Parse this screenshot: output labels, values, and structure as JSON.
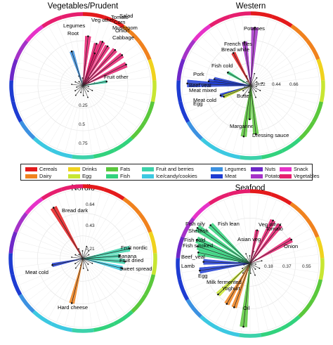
{
  "colors": {
    "Cereals": "#e41a1c",
    "Dairy": "#f0821e",
    "Drinks": "#f0d21e",
    "Egg": "#c8e632",
    "Fats": "#5ac83c",
    "Fish": "#32d27d",
    "Fruit and berries": "#3cd2aa",
    "Ice/candy/cookies": "#3cc8e1",
    "Legumes": "#3c91e1",
    "Meat": "#1e3cd2",
    "Nuts": "#6e28c8",
    "Potatoes": "#a532c8",
    "Snack": "#e632c8",
    "Vegetables": "#e61e6e"
  },
  "legend": {
    "items": [
      "Cereals",
      "Dairy",
      "Drinks",
      "Egg",
      "Fats",
      "Fish",
      "Fruit and berries",
      "Ice/candy/cookies",
      "Legumes",
      "Meat",
      "Nuts",
      "Potatoes",
      "Snack",
      "Vegetables"
    ]
  },
  "chart_data": [
    {
      "type": "radar",
      "title": "Vegetables/Prudent",
      "ring_labels": [
        "0.25",
        "0.5",
        "0.75"
      ],
      "ring_max": 0.85,
      "spokes": [
        {
          "label": "Legumes",
          "group": "Legumes",
          "value": 0.45
        },
        {
          "label": "Veg other",
          "group": "Vegetables",
          "value": 0.62
        },
        {
          "label": "Tomato",
          "group": "Vegetables",
          "value": 0.55
        },
        {
          "label": "Salad",
          "group": "Vegetables",
          "value": 0.6
        },
        {
          "label": "Corn",
          "group": "Vegetables",
          "value": 0.58
        },
        {
          "label": "Mushroom",
          "group": "Vegetables",
          "value": 0.6
        },
        {
          "label": "Onion",
          "group": "Vegetables",
          "value": 0.62
        },
        {
          "label": "Cabbage",
          "group": "Vegetables",
          "value": 0.6
        },
        {
          "label": "Root",
          "group": "Vegetables",
          "value": 0.43
        },
        {
          "label": "Fruit other",
          "group": "Fruit and berries",
          "value": 0.3
        }
      ]
    },
    {
      "type": "radar",
      "title": "Western",
      "ring_labels": [
        "0.22",
        "0.44",
        "0.66"
      ],
      "ring_max": 0.78,
      "spokes": [
        {
          "label": "Potatoes",
          "group": "Potatoes",
          "value": 0.66
        },
        {
          "label": "French fries",
          "group": "Potatoes",
          "value": 0.5
        },
        {
          "label": "Bread white",
          "group": "Cereals",
          "value": 0.42
        },
        {
          "label": "Fish cold",
          "group": "Fish",
          "value": 0.3
        },
        {
          "label": "Pork",
          "group": "Meat",
          "value": 0.42
        },
        {
          "label": "Beef veal",
          "group": "Meat",
          "value": 0.72
        },
        {
          "label": "Meat mixed",
          "group": "Meat",
          "value": 0.48
        },
        {
          "label": "Meat cold",
          "group": "Meat",
          "value": 0.36
        },
        {
          "label": "Egg",
          "group": "Egg",
          "value": 0.33
        },
        {
          "label": "Butter",
          "group": "Fats",
          "value": 0.38
        },
        {
          "label": "Margarine",
          "group": "Fats",
          "value": 0.58
        },
        {
          "label": "Dressing sauce",
          "group": "Fats",
          "value": 0.55
        }
      ]
    },
    {
      "type": "radar",
      "title": "Nordic",
      "ring_labels": [
        "0.21",
        "0.43",
        "0.64"
      ],
      "ring_max": 0.75,
      "spokes": [
        {
          "label": "Bread dark",
          "group": "Cereals",
          "value": 0.64
        },
        {
          "label": "Fruit nordic",
          "group": "Fruit and berries",
          "value": 0.52
        },
        {
          "label": "Banana",
          "group": "Fruit and berries",
          "value": 0.4
        },
        {
          "label": "Fruit dried",
          "group": "Fruit and berries",
          "value": 0.46
        },
        {
          "label": "Sweet spread",
          "group": "Ice/candy/cookies",
          "value": 0.44
        },
        {
          "label": "Meat cold",
          "group": "Meat",
          "value": 0.34
        },
        {
          "label": "Hard cheese",
          "group": "Dairy",
          "value": 0.5
        }
      ]
    },
    {
      "type": "radar",
      "title": "Seafood",
      "ring_labels": [
        "0.18",
        "0.37",
        "0.55"
      ],
      "ring_max": 0.65,
      "spokes": [
        {
          "label": "Fish lean",
          "group": "Fish",
          "value": 0.52
        },
        {
          "label": "Fish oily",
          "group": "Fish",
          "value": 0.6
        },
        {
          "label": "Shellfish",
          "group": "Fish",
          "value": 0.55
        },
        {
          "label": "Fish cold",
          "group": "Fish",
          "value": 0.52
        },
        {
          "label": "Fish smoked",
          "group": "Fish",
          "value": 0.5
        },
        {
          "label": "Asian veg",
          "group": "Vegetables",
          "value": 0.32
        },
        {
          "label": "Veg other",
          "group": "Vegetables",
          "value": 0.46
        },
        {
          "label": "Tomato",
          "group": "Vegetables",
          "value": 0.46
        },
        {
          "label": "Onion",
          "group": "Vegetables",
          "value": 0.45
        },
        {
          "label": "Beef_veal",
          "group": "Meat",
          "value": 0.44
        },
        {
          "label": "Lamb",
          "group": "Meat",
          "value": 0.48
        },
        {
          "label": "Egg",
          "group": "Egg",
          "value": 0.42
        },
        {
          "label": "Milk fermented",
          "group": "Dairy",
          "value": 0.44
        },
        {
          "label": "Yoghurt",
          "group": "Dairy",
          "value": 0.44
        },
        {
          "label": "Oil",
          "group": "Fats",
          "value": 0.6
        }
      ]
    }
  ]
}
